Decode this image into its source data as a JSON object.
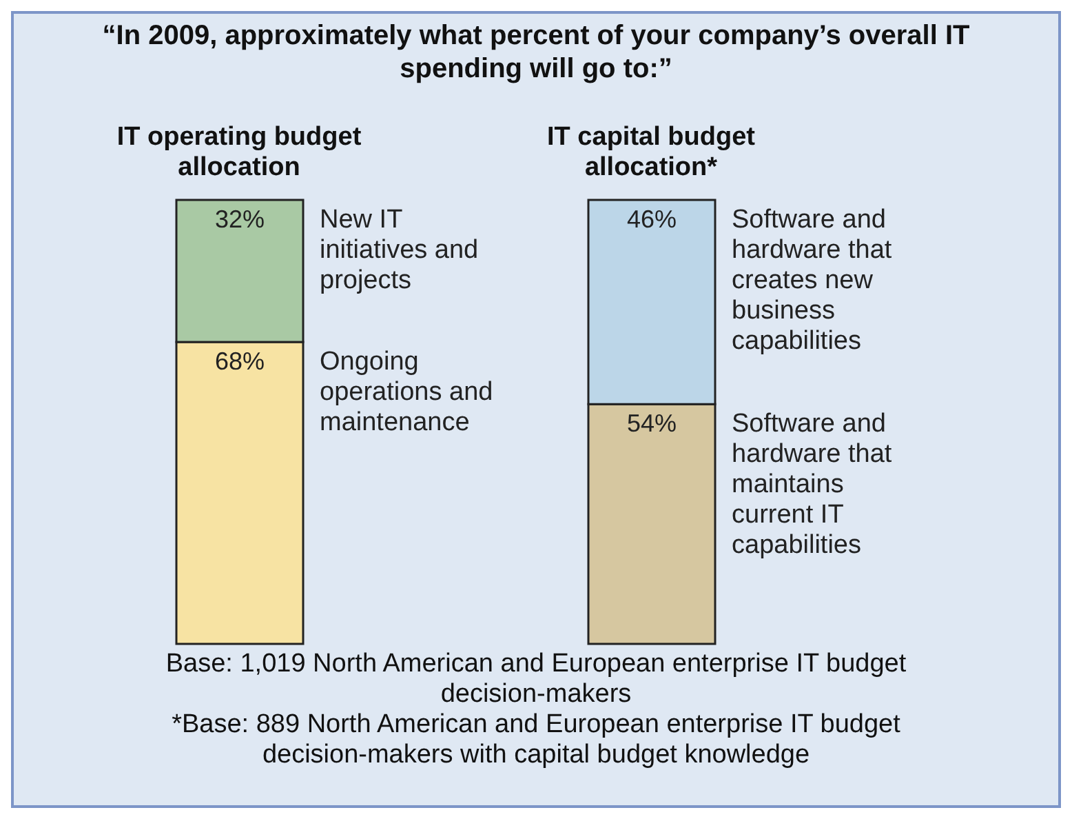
{
  "chart_data": {
    "type": "bar",
    "stacked": true,
    "title": "“In 2009, approximately what percent of your company’s overall IT spending will go to:”",
    "categories": [
      "IT operating budget allocation",
      "IT capital budget allocation*"
    ],
    "series": [
      {
        "name": "Ongoing operations and maintenance",
        "color": "#f7e3a3",
        "values": [
          68,
          null
        ],
        "value_labels": [
          "68%",
          null
        ]
      },
      {
        "name": "New IT initiatives and projects",
        "color": "#a9c9a4",
        "values": [
          32,
          null
        ],
        "value_labels": [
          "32%",
          null
        ]
      },
      {
        "name": "Software and hardware that maintains current IT capabilities",
        "color": "#d6c7a0",
        "values": [
          null,
          54
        ],
        "value_labels": [
          null,
          "54%"
        ]
      },
      {
        "name": "Software and hardware that creates new business capabilities",
        "color": "#bcd6e8",
        "values": [
          null,
          46
        ],
        "value_labels": [
          null,
          "46%"
        ]
      }
    ],
    "annotations": [
      "Base: 1,019 North American and European enterprise IT budget decision-makers",
      "*Base: 889 North American and European enterprise IT budget decision-makers with capital budget knowledge"
    ]
  }
}
